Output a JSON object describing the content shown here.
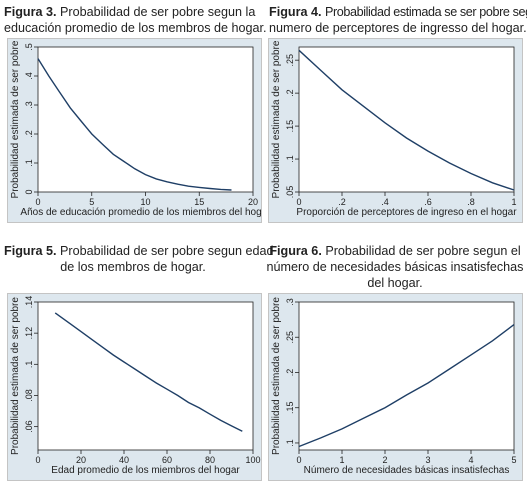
{
  "figures": [
    {
      "number": "Figura 3.",
      "title_lines": [
        "Probabilidad de ser pobre segun la",
        "educación promedio de los membros de hogar."
      ]
    },
    {
      "number": "Figura 4.",
      "title_lines": [
        "Probabilidad estimada se ser pobre segun",
        "numero de perceptores de ingresso del hogar."
      ]
    },
    {
      "number": "Figura 5.",
      "title_lines": [
        "Probabilidad de ser pobre segun edad",
        "de los membros de hogar."
      ]
    },
    {
      "number": "Figura 6.",
      "title_lines": [
        "Probabilidad de ser pobre segun el",
        "número de necesidades básicas insatisfechas",
        "del hogar."
      ]
    }
  ],
  "colors": {
    "line": "#1f3f66",
    "plot_bg": "#ffffff",
    "outer_bg": "#dde7ee",
    "frame": "#c4c4c4"
  },
  "chart_data": [
    {
      "type": "line",
      "xlabel": "Años de educación promedio de los miembros del hogar",
      "ylabel": "Probabilidad estimada de ser pobre",
      "xlim": [
        0,
        20
      ],
      "ylim": [
        0,
        0.5
      ],
      "xticks": [
        0,
        5,
        10,
        15,
        20
      ],
      "xtick_labels": [
        "0",
        "5",
        "10",
        "15",
        "20"
      ],
      "yticks": [
        0,
        0.1,
        0.2,
        0.3,
        0.4,
        0.5
      ],
      "ytick_labels": [
        "0",
        ".1",
        ".2",
        ".3",
        ".4",
        ".5"
      ],
      "x": [
        0,
        1,
        2,
        3,
        4,
        5,
        6,
        7,
        8,
        9,
        10,
        11,
        12,
        13,
        14,
        15,
        16,
        17,
        18
      ],
      "y": [
        0.46,
        0.4,
        0.345,
        0.29,
        0.245,
        0.2,
        0.165,
        0.13,
        0.105,
        0.08,
        0.06,
        0.045,
        0.035,
        0.027,
        0.02,
        0.016,
        0.012,
        0.009,
        0.007
      ]
    },
    {
      "type": "line",
      "xlabel": "Proporción de perceptores de ingreso en el hogar",
      "ylabel": "Probabilidad estimada de ser pobre",
      "xlim": [
        0,
        1
      ],
      "ylim": [
        0.05,
        0.27
      ],
      "xticks": [
        0,
        0.2,
        0.4,
        0.6,
        0.8,
        1
      ],
      "xtick_labels": [
        "0",
        ".2",
        ".4",
        ".6",
        ".8",
        "1"
      ],
      "yticks": [
        0.05,
        0.1,
        0.15,
        0.2,
        0.25
      ],
      "ytick_labels": [
        ".05",
        ".1",
        ".15",
        ".2",
        ".25"
      ],
      "x": [
        0,
        0.1,
        0.2,
        0.3,
        0.4,
        0.5,
        0.6,
        0.7,
        0.8,
        0.9,
        1.0
      ],
      "y": [
        0.265,
        0.235,
        0.205,
        0.18,
        0.155,
        0.132,
        0.112,
        0.094,
        0.078,
        0.064,
        0.053
      ]
    },
    {
      "type": "line",
      "xlabel": "Edad promedio de los miembros del hogar",
      "ylabel": "Probabilidad estimada de ser pobre",
      "xlim": [
        0,
        100
      ],
      "ylim": [
        0.045,
        0.14
      ],
      "xticks": [
        0,
        20,
        40,
        60,
        80,
        100
      ],
      "xtick_labels": [
        "0",
        "20",
        "40",
        "60",
        "80",
        "100"
      ],
      "yticks": [
        0.06,
        0.08,
        0.1,
        0.12,
        0.14
      ],
      "ytick_labels": [
        ".06",
        ".08",
        ".1",
        ".12",
        ".14"
      ],
      "x": [
        8,
        15,
        20,
        25,
        30,
        35,
        40,
        45,
        50,
        55,
        60,
        65,
        70,
        75,
        80,
        85,
        90,
        95
      ],
      "y": [
        0.133,
        0.126,
        0.121,
        0.116,
        0.111,
        0.106,
        0.1015,
        0.097,
        0.0925,
        0.088,
        0.084,
        0.08,
        0.0755,
        0.072,
        0.068,
        0.064,
        0.0605,
        0.057
      ]
    },
    {
      "type": "line",
      "xlabel": "Número de necesidades básicas insatisfechas",
      "ylabel": "Probabilidad estimada de ser pobre",
      "xlim": [
        0,
        5
      ],
      "ylim": [
        0.09,
        0.3
      ],
      "xticks": [
        0,
        1,
        2,
        3,
        4,
        5
      ],
      "xtick_labels": [
        "0",
        "1",
        "2",
        "3",
        "4",
        "5"
      ],
      "yticks": [
        0.1,
        0.15,
        0.2,
        0.25,
        0.3
      ],
      "ytick_labels": [
        ".1",
        ".15",
        ".2",
        ".25",
        ".3"
      ],
      "x": [
        0,
        0.5,
        1,
        1.5,
        2,
        2.5,
        3,
        3.5,
        4,
        4.5,
        5
      ],
      "y": [
        0.095,
        0.107,
        0.12,
        0.135,
        0.15,
        0.168,
        0.185,
        0.205,
        0.225,
        0.245,
        0.268
      ]
    }
  ]
}
